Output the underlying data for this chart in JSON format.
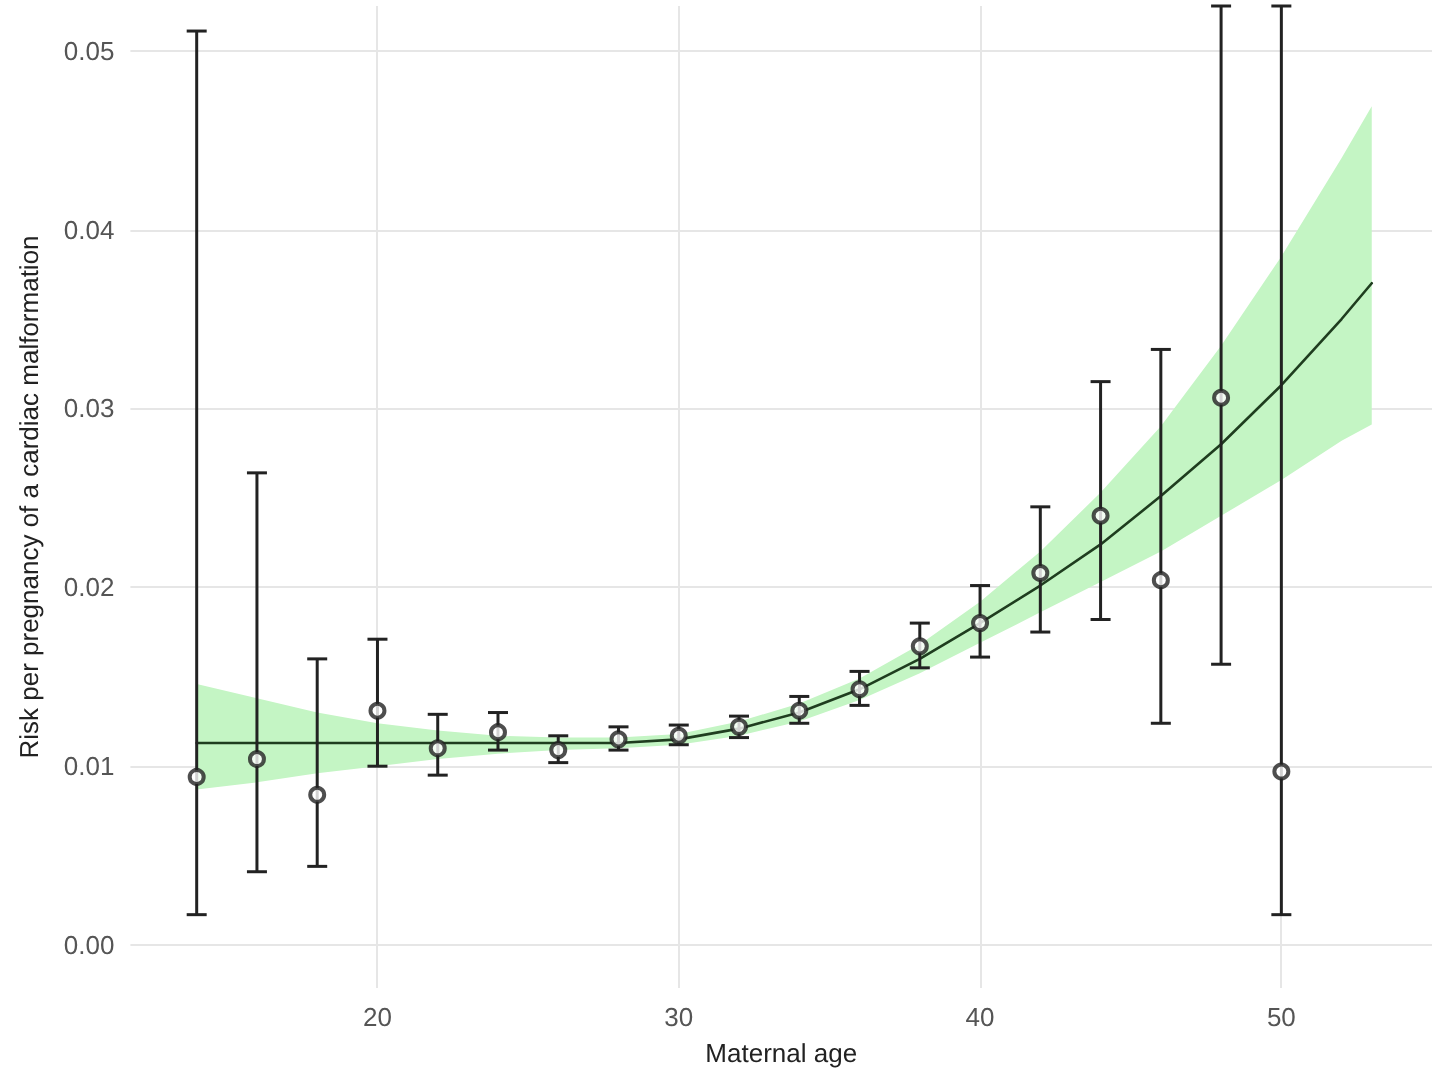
{
  "chart_data": {
    "type": "scatter",
    "xlabel": "Maternal age",
    "ylabel": "Risk per pregnancy of a cardiac malformation",
    "xlim": [
      11.8,
      55
    ],
    "xticks": [
      20,
      30,
      40,
      50
    ],
    "ylim": [
      -0.0024,
      0.0525
    ],
    "yticks": [
      {
        "value": 0,
        "label": "0.00"
      },
      0.01,
      0.02,
      0.03,
      0.04,
      0.05
    ],
    "grid": true,
    "series": [
      {
        "type": "line",
        "color": "#1f3d1f",
        "marker": "none",
        "line_style": "solid",
        "x": [
          14,
          16,
          18,
          20,
          22,
          24,
          26,
          28,
          30,
          32,
          34,
          36,
          38,
          40,
          42,
          44,
          46,
          48,
          50,
          52,
          53
        ],
        "values": [
          0.0113,
          0.0113,
          0.0113,
          0.0113,
          0.0113,
          0.0113,
          0.0113,
          0.0113,
          0.0115,
          0.0121,
          0.013,
          0.0143,
          0.016,
          0.018,
          0.0201,
          0.0224,
          0.0251,
          0.028,
          0.0313,
          0.035,
          0.037
        ],
        "lower": [
          0.0087,
          0.0091,
          0.0096,
          0.01,
          0.0104,
          0.0107,
          0.0109,
          0.011,
          0.0112,
          0.0117,
          0.0125,
          0.0137,
          0.0152,
          0.0169,
          0.0186,
          0.0203,
          0.022,
          0.024,
          0.026,
          0.0282,
          0.0291
        ],
        "upper": [
          0.0146,
          0.0138,
          0.013,
          0.0124,
          0.012,
          0.0117,
          0.0116,
          0.0116,
          0.0118,
          0.0125,
          0.0135,
          0.0149,
          0.0168,
          0.0192,
          0.022,
          0.0253,
          0.029,
          0.0335,
          0.0385,
          0.044,
          0.0469
        ]
      },
      {
        "color": "#222222",
        "marker": "circle",
        "x": [
          14,
          16,
          18,
          20,
          22,
          24,
          26,
          28,
          30,
          32,
          34,
          36,
          38,
          40,
          42,
          44,
          46,
          48,
          50
        ],
        "values": [
          0.0094,
          0.0104,
          0.0084,
          0.0131,
          0.011,
          0.0119,
          0.0109,
          0.0115,
          0.0117,
          0.0122,
          0.0131,
          0.0143,
          0.0167,
          0.018,
          0.0208,
          0.024,
          0.0204,
          0.0306,
          0.0097
        ],
        "errors": [
          [
            0.0017,
            0.0511
          ],
          [
            0.0041,
            0.0264
          ],
          [
            0.0044,
            0.016
          ],
          [
            0.01,
            0.0171
          ],
          [
            0.0095,
            0.0129
          ],
          [
            0.0109,
            0.013
          ],
          [
            0.0102,
            0.0117
          ],
          [
            0.0109,
            0.0122
          ],
          [
            0.0112,
            0.0123
          ],
          [
            0.0116,
            0.0128
          ],
          [
            0.0124,
            0.0139
          ],
          [
            0.0134,
            0.0153
          ],
          [
            0.0155,
            0.018
          ],
          [
            0.0161,
            0.0201
          ],
          [
            0.0175,
            0.0245
          ],
          [
            0.0182,
            0.0315
          ],
          [
            0.0124,
            0.0333
          ],
          [
            0.0157,
            0.0525
          ],
          [
            0.0017,
            0.0525
          ]
        ]
      }
    ]
  }
}
